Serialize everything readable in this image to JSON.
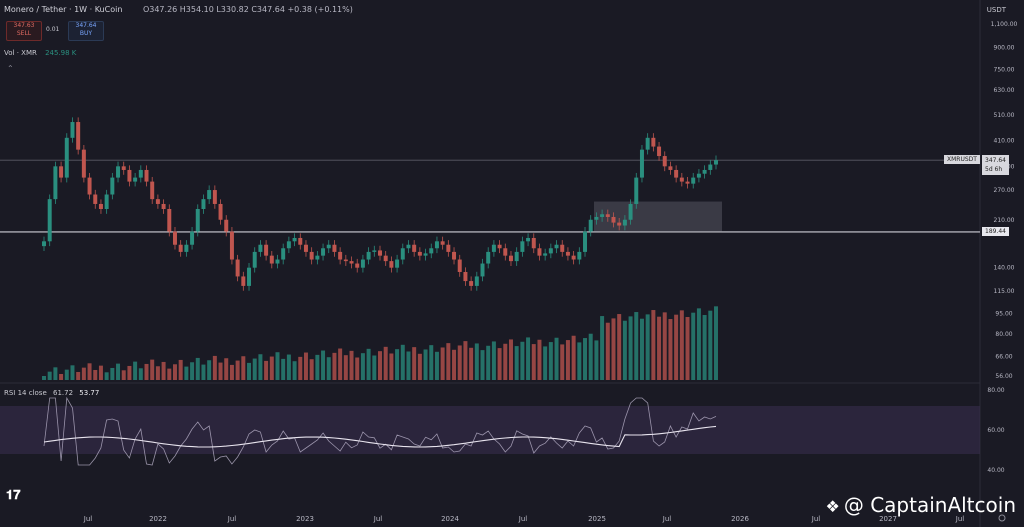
{
  "header": {
    "title": "Monero / Tether · 1W · KuCoin",
    "ohlc": "O347.26 H354.10 L330.82 C347.64 +0.38 (+0.11%)",
    "sell_price": "347.63",
    "sell_label": "SELL",
    "spread": "0.01",
    "buy_price": "347.64",
    "buy_label": "BUY",
    "volume_label": "Vol · XMR",
    "volume_value": "245.98 K",
    "currency": "USDT"
  },
  "price_tag": {
    "symbol": "XMRUSDT",
    "price": "347.64",
    "countdown": "5d 6h"
  },
  "level_tag": "189.44",
  "rsi": {
    "label": "RSI 14 close",
    "value1": "61.72",
    "value2": "53.77"
  },
  "watermark": "@ CaptainAltcoin",
  "colors": {
    "up": "#2a8f7f",
    "down": "#c0564f",
    "bg": "#1a1a24",
    "rsi_band": "#3a3050",
    "level": "#cfcfd6"
  },
  "chart_data": {
    "type": "candlestick",
    "price_axis_ticks": [
      1100,
      900,
      750,
      630,
      510,
      410,
      330,
      270,
      210,
      190,
      140,
      115,
      95,
      80,
      66,
      56
    ],
    "rsi_axis_ticks": [
      80,
      60,
      40
    ],
    "x_ticks": [
      "Jul",
      "2022",
      "Jul",
      "2023",
      "Jul",
      "2024",
      "Jul",
      "2025",
      "Jul",
      "2026",
      "Jul",
      "2027",
      "Jul"
    ],
    "horizontal_levels": [
      189.44,
      347.64
    ],
    "close_series": [
      175,
      250,
      330,
      300,
      420,
      480,
      380,
      300,
      260,
      240,
      230,
      260,
      300,
      330,
      320,
      290,
      300,
      320,
      290,
      250,
      240,
      230,
      190,
      170,
      160,
      170,
      190,
      230,
      250,
      270,
      240,
      210,
      190,
      150,
      130,
      120,
      140,
      160,
      170,
      155,
      145,
      150,
      165,
      175,
      180,
      170,
      160,
      150,
      155,
      165,
      170,
      160,
      150,
      148,
      145,
      140,
      150,
      160,
      162,
      155,
      148,
      140,
      150,
      165,
      170,
      160,
      155,
      158,
      165,
      175,
      170,
      160,
      150,
      135,
      125,
      120,
      130,
      145,
      160,
      170,
      165,
      155,
      148,
      160,
      175,
      180,
      165,
      155,
      158,
      165,
      170,
      160,
      155,
      150,
      160,
      190,
      210,
      215,
      220,
      215,
      205,
      200,
      210,
      240,
      300,
      380,
      420,
      390,
      360,
      330,
      320,
      300,
      290,
      285,
      300,
      310,
      320,
      335,
      347.64
    ]
  }
}
